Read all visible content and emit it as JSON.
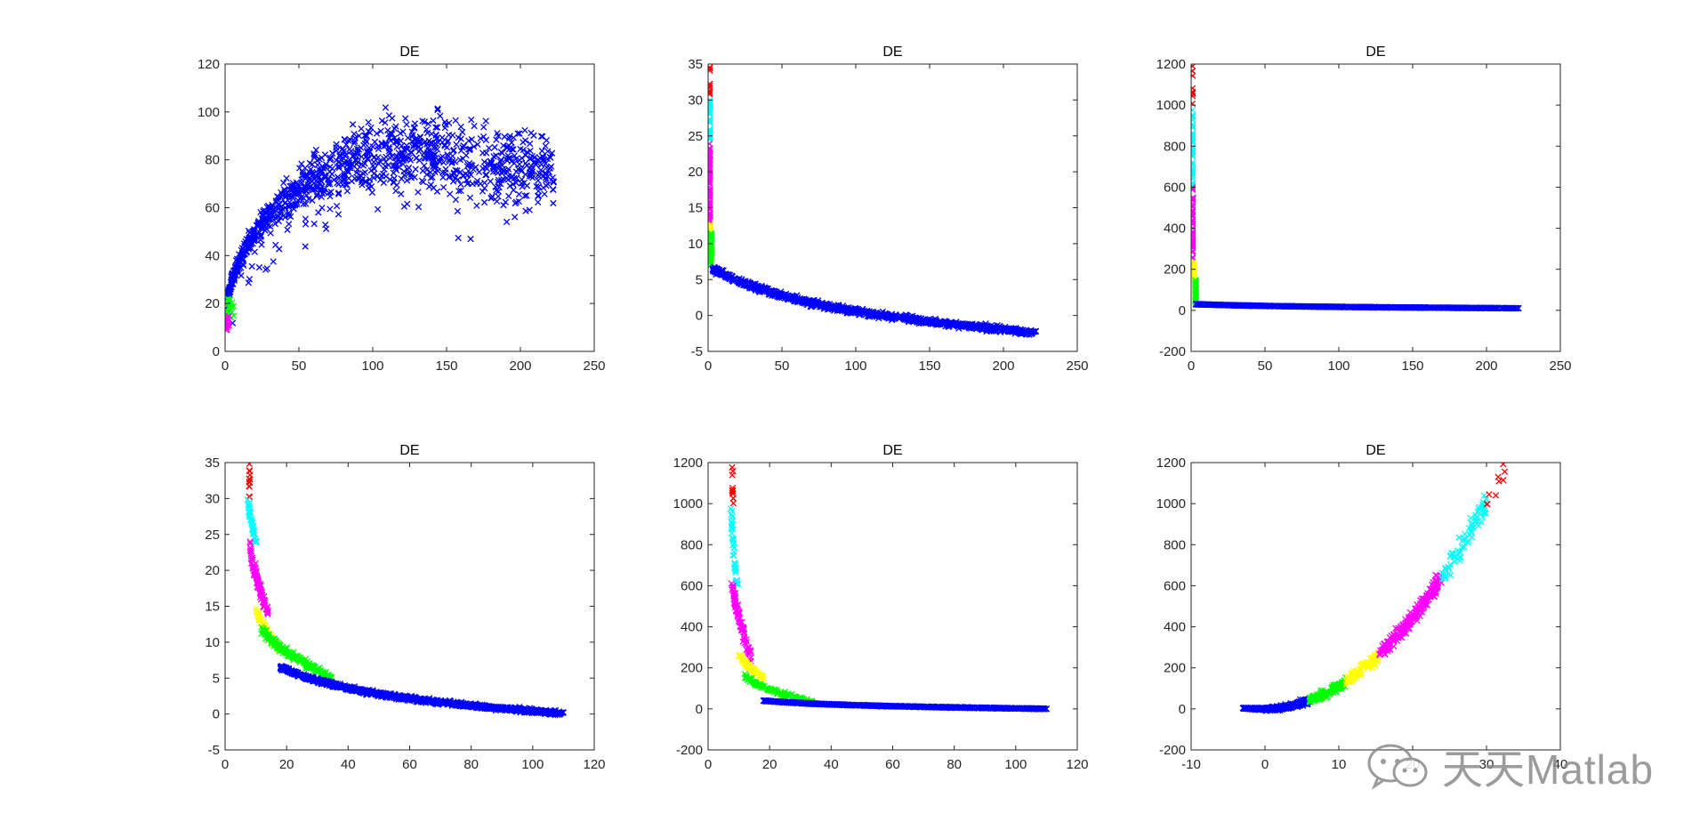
{
  "figure": {
    "background": "#ffffff",
    "marker": "x",
    "cluster_colors": [
      "#ff0000",
      "#00ffff",
      "#ff00ff",
      "#ffff00",
      "#00ff00",
      "#0000ff"
    ]
  },
  "watermark": {
    "text": "天天Matlab",
    "icon": "wechat-icon"
  },
  "chart_data": [
    {
      "type": "scatter",
      "title": "DE",
      "xlim": [
        0,
        250
      ],
      "ylim": [
        0,
        120
      ],
      "xticks": [
        0,
        50,
        100,
        150,
        200,
        250
      ],
      "yticks": [
        0,
        20,
        40,
        60,
        80,
        100,
        120
      ],
      "series": [
        {
          "name": "cluster-blue",
          "color": "#0000ff",
          "shape": "arch",
          "x_range": [
            2,
            223
          ],
          "y_peak": 95,
          "count": 1100
        },
        {
          "name": "cluster-green",
          "color": "#00ff00",
          "shape": "point-cloud",
          "x_range": [
            0,
            6
          ],
          "y_range": [
            14,
            22
          ],
          "count": 25
        },
        {
          "name": "cluster-magenta",
          "color": "#ff00ff",
          "shape": "point-cloud",
          "x_range": [
            0,
            3
          ],
          "y_range": [
            9,
            15
          ],
          "count": 20
        }
      ]
    },
    {
      "type": "scatter",
      "title": "DE",
      "xlim": [
        0,
        250
      ],
      "ylim": [
        -5,
        35
      ],
      "xticks": [
        0,
        50,
        100,
        150,
        200,
        250
      ],
      "yticks": [
        -5,
        0,
        5,
        10,
        15,
        20,
        25,
        30,
        35
      ],
      "series": [
        {
          "name": "cluster-red",
          "color": "#ff0000",
          "shape": "column",
          "x": 1,
          "y_range": [
            30,
            35
          ],
          "count": 12
        },
        {
          "name": "cluster-cyan",
          "color": "#00ffff",
          "shape": "column",
          "x": 1,
          "y_range": [
            24,
            30
          ],
          "count": 40
        },
        {
          "name": "cluster-magenta",
          "color": "#ff00ff",
          "shape": "column",
          "x": 1,
          "y_range": [
            13,
            24
          ],
          "count": 70
        },
        {
          "name": "cluster-yellow",
          "color": "#ffff00",
          "shape": "column",
          "x": 1.5,
          "y_range": [
            11.5,
            13
          ],
          "count": 15
        },
        {
          "name": "cluster-green",
          "color": "#00ff00",
          "shape": "column",
          "x": 2,
          "y_range": [
            7,
            11.5
          ],
          "count": 40
        },
        {
          "name": "cluster-blue",
          "color": "#0000ff",
          "shape": "decay",
          "x_range": [
            3,
            222
          ],
          "y_start": 6.5,
          "y_end": -2.5,
          "count": 1000
        }
      ]
    },
    {
      "type": "scatter",
      "title": "DE",
      "xlim": [
        0,
        250
      ],
      "ylim": [
        -200,
        1200
      ],
      "xticks": [
        0,
        50,
        100,
        150,
        200,
        250
      ],
      "yticks": [
        -200,
        0,
        200,
        400,
        600,
        800,
        1000,
        1200
      ],
      "series": [
        {
          "name": "cluster-red",
          "color": "#ff0000",
          "shape": "column",
          "x": 1,
          "y_range": [
            1000,
            1190
          ],
          "count": 12
        },
        {
          "name": "cluster-cyan",
          "color": "#00ffff",
          "shape": "column",
          "x": 1,
          "y_range": [
            600,
            980
          ],
          "count": 40
        },
        {
          "name": "cluster-magenta",
          "color": "#ff00ff",
          "shape": "column",
          "x": 1,
          "y_range": [
            250,
            600
          ],
          "count": 60
        },
        {
          "name": "cluster-yellow",
          "color": "#ffff00",
          "shape": "column",
          "x": 2,
          "y_range": [
            150,
            250
          ],
          "count": 20
        },
        {
          "name": "cluster-green",
          "color": "#00ff00",
          "shape": "column",
          "x": 3,
          "y_range": [
            40,
            150
          ],
          "count": 30
        },
        {
          "name": "cluster-blue",
          "color": "#0000ff",
          "shape": "decay",
          "x_range": [
            3,
            222
          ],
          "y_start": 30,
          "y_end": 10,
          "count": 900
        }
      ]
    },
    {
      "type": "scatter",
      "title": "DE",
      "xlim": [
        0,
        120
      ],
      "ylim": [
        -5,
        35
      ],
      "xticks": [
        0,
        20,
        40,
        60,
        80,
        100,
        120
      ],
      "yticks": [
        -5,
        0,
        5,
        10,
        15,
        20,
        25,
        30,
        35
      ],
      "series": [
        {
          "name": "cluster-red",
          "color": "#ff0000",
          "shape": "column",
          "x": 8,
          "y_range": [
            30,
            35
          ],
          "count": 12
        },
        {
          "name": "cluster-cyan",
          "color": "#00ffff",
          "shape": "band",
          "x_range": [
            7.5,
            10
          ],
          "y_range": [
            24,
            30
          ],
          "count": 40
        },
        {
          "name": "cluster-magenta",
          "color": "#ff00ff",
          "shape": "band",
          "x_range": [
            8,
            14
          ],
          "y_range": [
            14,
            24
          ],
          "count": 90
        },
        {
          "name": "cluster-yellow",
          "color": "#ffff00",
          "shape": "band",
          "x_range": [
            10,
            18
          ],
          "y_range": [
            9,
            15
          ],
          "count": 80
        },
        {
          "name": "cluster-green",
          "color": "#00ff00",
          "shape": "band",
          "x_range": [
            12,
            35
          ],
          "y_range": [
            5,
            12
          ],
          "count": 180
        },
        {
          "name": "cluster-blue",
          "color": "#0000ff",
          "shape": "decay",
          "x_range": [
            18,
            110
          ],
          "y_start": 6.5,
          "y_end": 0,
          "count": 1100
        }
      ]
    },
    {
      "type": "scatter",
      "title": "DE",
      "xlim": [
        0,
        120
      ],
      "ylim": [
        -200,
        1200
      ],
      "xticks": [
        0,
        20,
        40,
        60,
        80,
        100,
        120
      ],
      "yticks": [
        -200,
        0,
        200,
        400,
        600,
        800,
        1000,
        1200
      ],
      "series": [
        {
          "name": "cluster-red",
          "color": "#ff0000",
          "shape": "column",
          "x": 8,
          "y_range": [
            1000,
            1190
          ],
          "count": 12
        },
        {
          "name": "cluster-cyan",
          "color": "#00ffff",
          "shape": "band",
          "x_range": [
            7.5,
            9.5
          ],
          "y_range": [
            600,
            980
          ],
          "count": 40
        },
        {
          "name": "cluster-magenta",
          "color": "#ff00ff",
          "shape": "band",
          "x_range": [
            8,
            14
          ],
          "y_range": [
            250,
            610
          ],
          "count": 90
        },
        {
          "name": "cluster-yellow",
          "color": "#ffff00",
          "shape": "band",
          "x_range": [
            10,
            18
          ],
          "y_range": [
            150,
            270
          ],
          "count": 70
        },
        {
          "name": "cluster-green",
          "color": "#00ff00",
          "shape": "band",
          "x_range": [
            12,
            34
          ],
          "y_range": [
            30,
            160
          ],
          "count": 130
        },
        {
          "name": "cluster-blue",
          "color": "#0000ff",
          "shape": "decay",
          "x_range": [
            18,
            110
          ],
          "y_start": 40,
          "y_end": 0,
          "count": 900
        }
      ]
    },
    {
      "type": "scatter",
      "title": "DE",
      "xlim": [
        -10,
        40
      ],
      "ylim": [
        -200,
        1200
      ],
      "xticks": [
        -10,
        0,
        10,
        20,
        30,
        40
      ],
      "yticks": [
        -200,
        0,
        200,
        400,
        600,
        800,
        1000,
        1200
      ],
      "series": [
        {
          "name": "cluster-blue",
          "color": "#0000ff",
          "shape": "parabola",
          "x_range": [
            -3,
            6
          ],
          "count": 400
        },
        {
          "name": "cluster-green",
          "color": "#00ff00",
          "shape": "parabola",
          "x_range": [
            6,
            11
          ],
          "count": 120
        },
        {
          "name": "cluster-yellow",
          "color": "#ffff00",
          "shape": "parabola",
          "x_range": [
            11,
            15.5
          ],
          "count": 90
        },
        {
          "name": "cluster-magenta",
          "color": "#ff00ff",
          "shape": "parabola",
          "x_range": [
            15.5,
            24
          ],
          "count": 200
        },
        {
          "name": "cluster-cyan",
          "color": "#00ffff",
          "shape": "parabola",
          "x_range": [
            24,
            30
          ],
          "count": 80
        },
        {
          "name": "cluster-red",
          "color": "#ff0000",
          "shape": "parabola",
          "x_range": [
            30,
            33
          ],
          "count": 10
        }
      ]
    }
  ]
}
